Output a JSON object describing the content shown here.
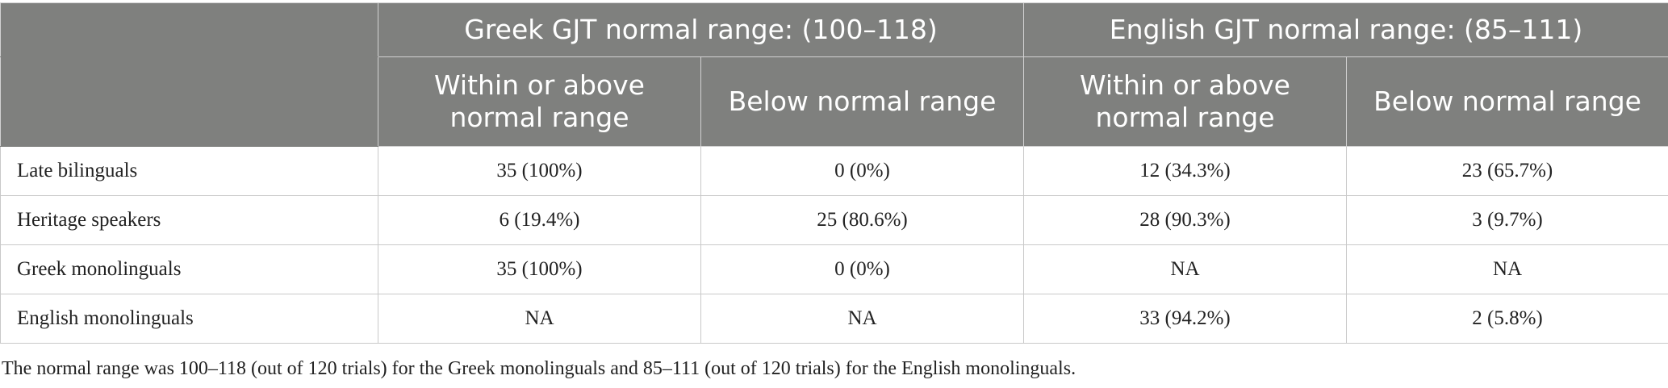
{
  "table": {
    "group_headers": [
      "Greek GJT normal range: (100–118)",
      "English GJT normal range: (85–111)"
    ],
    "sub_headers": [
      "Within or above normal range",
      "Below normal range",
      "Within or above normal range",
      "Below normal range"
    ],
    "rows": [
      {
        "label": "Late bilinguals",
        "cells": [
          "35 (100%)",
          "0 (0%)",
          "12 (34.3%)",
          "23 (65.7%)"
        ]
      },
      {
        "label": "Heritage speakers",
        "cells": [
          "6 (19.4%)",
          "25 (80.6%)",
          "28 (90.3%)",
          "3 (9.7%)"
        ]
      },
      {
        "label": "Greek monolinguals",
        "cells": [
          "35 (100%)",
          "0 (0%)",
          "NA",
          "NA"
        ]
      },
      {
        "label": "English monolinguals",
        "cells": [
          "NA",
          "NA",
          "33 (94.2%)",
          "2 (5.8%)"
        ]
      }
    ],
    "colors": {
      "header_bg": "#7f807e",
      "header_text": "#ffffff",
      "grid": "#c9c9c9"
    }
  },
  "footnote": "The normal range was 100–118 (out of 120 trials) for the Greek monolinguals and 85–111 (out of 120 trials) for the English monolinguals."
}
